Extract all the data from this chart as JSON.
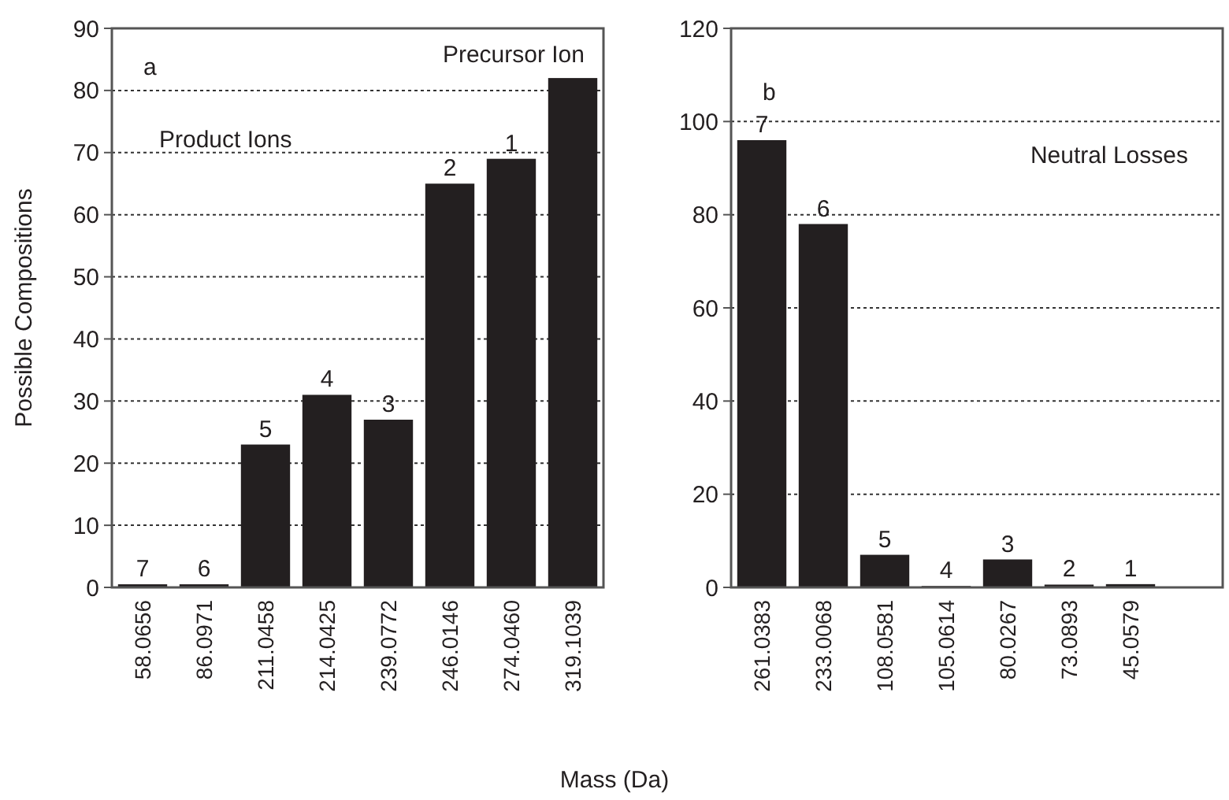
{
  "chart_data": [
    {
      "type": "bar",
      "ylabel": "Possible Compositions",
      "xlabel": "Mass (Da)",
      "categories": [
        "58.0656",
        "86.0971",
        "211.0458",
        "214.0425",
        "239.0772",
        "246.0146",
        "274.0460",
        "319.1039"
      ],
      "values": [
        0.5,
        0.5,
        23,
        31,
        27,
        65,
        69,
        82
      ],
      "color": "#231f20",
      "ylim": [
        0,
        90
      ],
      "yticks": [
        0,
        10,
        20,
        30,
        40,
        50,
        60,
        70,
        80,
        90
      ],
      "grid": "y",
      "annotations": [
        "a",
        "Precursor Ion",
        "Product Ions",
        {
          "text": "7",
          "x": "58.0656",
          "y": 0.5
        },
        {
          "text": "6",
          "x": "86.0971",
          "y": 0.5
        },
        {
          "text": "5",
          "x": "211.0458",
          "y": 23
        },
        {
          "text": "4",
          "x": "214.0425",
          "y": 31
        },
        {
          "text": "3",
          "x": "239.0772",
          "y": 27
        },
        {
          "text": "2",
          "x": "246.0146",
          "y": 65
        },
        {
          "text": "1",
          "x": "274.0460",
          "y": 69
        }
      ]
    },
    {
      "type": "bar",
      "categories": [
        "261.0383",
        "233.0068",
        "108.0581",
        "105.0614",
        "80.0267",
        "73.0893",
        "45.0579",
        null
      ],
      "values": [
        96,
        78,
        7,
        0.3,
        6,
        0.6,
        0.7,
        null
      ],
      "color": "#231f20",
      "ylim": [
        0,
        120
      ],
      "yticks": [
        0,
        20,
        40,
        60,
        80,
        100,
        120
      ],
      "grid": "y",
      "annotations": [
        "b",
        "Neutral Losses",
        {
          "text": "7",
          "x": "261.0383",
          "y": 96
        },
        {
          "text": "6",
          "x": "233.0068",
          "y": 78
        },
        {
          "text": "5",
          "x": "108.0581",
          "y": 7
        },
        {
          "text": "4",
          "x": "105.0614",
          "y": 0.3
        },
        {
          "text": "3",
          "x": "80.0267",
          "y": 6
        },
        {
          "text": "2",
          "x": "73.0893",
          "y": 0.6
        },
        {
          "text": "1",
          "x": "45.0579",
          "y": 0.7
        }
      ]
    }
  ]
}
